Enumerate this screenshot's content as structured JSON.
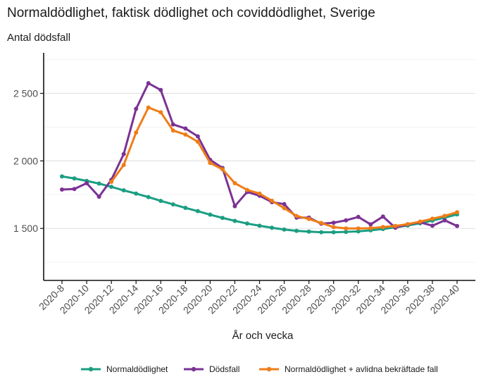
{
  "chart_data": {
    "type": "line",
    "title": "Normaldödlighet, faktisk dödlighet och coviddödlighet, Sverige",
    "subtitle": "Antal dödsfall",
    "xlabel": "År och vecka",
    "ylabel": "",
    "x": [
      8,
      9,
      10,
      11,
      12,
      13,
      14,
      15,
      16,
      17,
      18,
      19,
      20,
      21,
      22,
      23,
      24,
      25,
      26,
      27,
      28,
      29,
      30,
      31,
      32,
      33,
      34,
      35,
      36,
      37,
      38,
      39,
      40
    ],
    "xlim": [
      8,
      40
    ],
    "ylim": [
      1115,
      2800
    ],
    "yticks": [
      1500,
      2000,
      2500
    ],
    "ytick_labels": [
      "1 500",
      "2 000",
      "2 500"
    ],
    "xticks": [
      8,
      10,
      12,
      14,
      16,
      18,
      20,
      22,
      24,
      26,
      28,
      30,
      32,
      34,
      36,
      38,
      40
    ],
    "xtick_labels": [
      "2020-8",
      "2020-10",
      "2020-12",
      "2020-14",
      "2020-16",
      "2020-18",
      "2020-20",
      "2020-22",
      "2020-24",
      "2020-26",
      "2020-28",
      "2020-30",
      "2020-32",
      "2020-34",
      "2020-36",
      "2020-38",
      "2020-40"
    ],
    "grid": true,
    "legend_position": "bottom",
    "series": [
      {
        "name": "Normaldödlighet",
        "color": "#1a9e82",
        "values": [
          1885,
          1870,
          1852,
          1832,
          1808,
          1782,
          1758,
          1732,
          1704,
          1678,
          1652,
          1628,
          1602,
          1578,
          1556,
          1536,
          1520,
          1505,
          1492,
          1482,
          1476,
          1472,
          1472,
          1474,
          1478,
          1486,
          1496,
          1508,
          1522,
          1538,
          1558,
          1580,
          1604
        ]
      },
      {
        "name": "Dödsfall",
        "color": "#7b3294",
        "values": [
          1788,
          1792,
          1835,
          1735,
          1860,
          2050,
          2385,
          2575,
          2525,
          2270,
          2240,
          2182,
          2008,
          1948,
          1665,
          1770,
          1742,
          1695,
          1680,
          1580,
          1580,
          1535,
          1542,
          1560,
          1585,
          1530,
          1588,
          1505,
          1530,
          1545,
          1520,
          1560,
          1518
        ]
      },
      {
        "name": "Normaldödlighet + avlidna bekräftade fall",
        "color": "#ef7d17",
        "values": [
          null,
          null,
          null,
          null,
          1845,
          1970,
          2210,
          2395,
          2360,
          2225,
          2195,
          2142,
          1985,
          1938,
          1835,
          1785,
          1758,
          1705,
          1650,
          1592,
          1570,
          1540,
          1510,
          1500,
          1500,
          1502,
          1510,
          1518,
          1532,
          1550,
          1572,
          1593,
          1620
        ]
      }
    ]
  }
}
